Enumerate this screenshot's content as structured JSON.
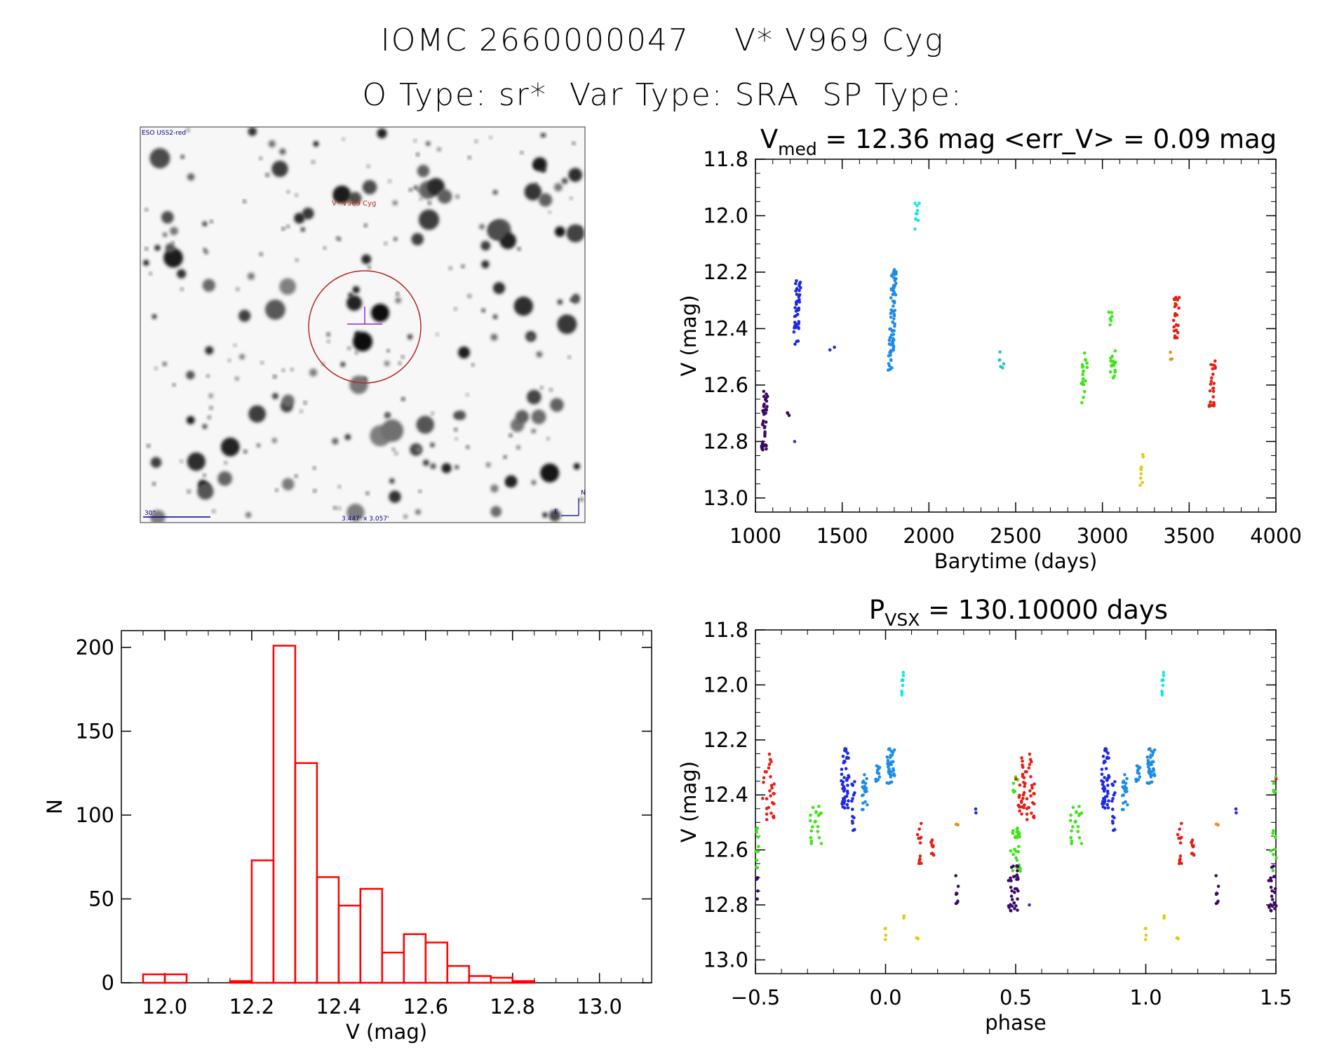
{
  "header": {
    "line1": "IOMC 2660000047    V* V969 Cyg",
    "line2": "O Type: sr*  Var Type: SRA  SP Type:"
  },
  "finder": {
    "survey": "ESO USS2-red",
    "target_label": "V* V969 Cyg",
    "scale_label": "30\"",
    "fov_label": "3.447' x 3.057'",
    "north": "N",
    "east": "E"
  },
  "colors": {
    "purple": "#3c0a64",
    "violet": "#5a1ec8",
    "blue": "#1e28e6",
    "azure": "#1e8ce6",
    "cyan": "#14e6e6",
    "teal": "#19c8c8",
    "green": "#3ce614",
    "yellow": "#e6c814",
    "orange": "#f08c14",
    "red": "#e61e14",
    "hist": "#ff0000",
    "circle": "#b42828"
  },
  "chart_data": [
    {
      "id": "lightcurve",
      "type": "scatter",
      "title_prefix": "V",
      "title_sub": "med",
      "title_rest": " = 12.36 mag <err_V> = 0.09 mag",
      "xlabel": "Barytime (days)",
      "ylabel": "V (mag)",
      "xlim": [
        1000,
        4000
      ],
      "ylim": [
        13.05,
        11.8
      ],
      "xticks": [
        1000,
        1500,
        2000,
        2500,
        3000,
        3500,
        4000
      ],
      "xtick_labels": [
        "1000",
        "1500",
        "2000",
        "2500",
        "3000",
        "3500",
        "4000"
      ],
      "yticks": [
        11.8,
        12.0,
        12.2,
        12.4,
        12.6,
        12.8,
        13.0
      ],
      "ytick_labels": [
        "11.8",
        "12.0",
        "12.2",
        "12.4",
        "12.6",
        "12.8",
        "13.0"
      ],
      "groups": [
        {
          "color": "purple",
          "t": 1055,
          "vmin": 12.62,
          "vmax": 12.83,
          "n": 40
        },
        {
          "color": "purple",
          "t": 1180,
          "vmin": 12.69,
          "vmax": 12.71,
          "n": 3
        },
        {
          "color": "violet",
          "t": 1220,
          "vmin": 12.8,
          "vmax": 12.81,
          "n": 1
        },
        {
          "color": "blue",
          "t": 1240,
          "vmin": 12.23,
          "vmax": 12.46,
          "n": 45
        },
        {
          "color": "blue",
          "t": 1445,
          "vmin": 12.42,
          "vmax": 12.48,
          "n": 2
        },
        {
          "color": "azure",
          "t": 1790,
          "vmin": 12.19,
          "vmax": 12.55,
          "n": 80
        },
        {
          "color": "cyan",
          "t": 1928,
          "vmin": 11.95,
          "vmax": 12.05,
          "n": 10
        },
        {
          "color": "teal",
          "t": 2420,
          "vmin": 12.46,
          "vmax": 12.55,
          "n": 6
        },
        {
          "color": "green",
          "t": 2895,
          "vmin": 12.48,
          "vmax": 12.67,
          "n": 20
        },
        {
          "color": "green",
          "t": 3040,
          "vmin": 12.32,
          "vmax": 12.41,
          "n": 6
        },
        {
          "color": "green",
          "t": 3060,
          "vmin": 12.47,
          "vmax": 12.6,
          "n": 15
        },
        {
          "color": "yellow",
          "t": 3235,
          "vmin": 12.84,
          "vmax": 12.98,
          "n": 10
        },
        {
          "color": "orange",
          "t": 3400,
          "vmin": 12.48,
          "vmax": 12.51,
          "n": 3
        },
        {
          "color": "red",
          "t": 3425,
          "vmin": 12.26,
          "vmax": 12.44,
          "n": 25
        },
        {
          "color": "red",
          "t": 3635,
          "vmin": 12.48,
          "vmax": 12.69,
          "n": 25
        }
      ]
    },
    {
      "id": "histogram",
      "type": "bar",
      "xlabel": "V (mag)",
      "ylabel": "N",
      "xlim": [
        11.9,
        13.12
      ],
      "ylim": [
        0,
        210
      ],
      "xticks": [
        12.0,
        12.2,
        12.4,
        12.6,
        12.8,
        13.0
      ],
      "xtick_labels": [
        "12.0",
        "12.2",
        "12.4",
        "12.6",
        "12.8",
        "13.0"
      ],
      "yticks": [
        0,
        50,
        100,
        150,
        200
      ],
      "ytick_labels": [
        "0",
        "50",
        "100",
        "150",
        "200"
      ],
      "bin_starts": [
        11.95,
        12.0,
        12.05,
        12.1,
        12.15,
        12.2,
        12.25,
        12.3,
        12.35,
        12.4,
        12.45,
        12.5,
        12.55,
        12.6,
        12.65,
        12.7,
        12.75,
        12.8,
        12.85,
        12.9,
        12.95,
        13.0
      ],
      "bin_width": 0.05,
      "counts": [
        5,
        5,
        0,
        0,
        1,
        73,
        201,
        131,
        63,
        46,
        56,
        18,
        29,
        24,
        10,
        4,
        3,
        1,
        0,
        0,
        0,
        0
      ]
    },
    {
      "id": "phased",
      "type": "scatter",
      "title_prefix": "P",
      "title_sub": "VSX",
      "title_rest": " = 130.10000 days",
      "period": 130.1,
      "xlabel": "phase",
      "ylabel": "V (mag)",
      "xlim": [
        -0.5,
        1.5
      ],
      "ylim": [
        13.05,
        11.8
      ],
      "xticks": [
        -0.5,
        0.0,
        0.5,
        1.0,
        1.5
      ],
      "xtick_labels": [
        "−0.5",
        "0.0",
        "0.5",
        "1.0",
        "1.5"
      ],
      "yticks": [
        11.8,
        12.0,
        12.2,
        12.4,
        12.6,
        12.8,
        13.0
      ],
      "ytick_labels": [
        "11.8",
        "12.0",
        "12.2",
        "12.4",
        "12.6",
        "12.8",
        "13.0"
      ],
      "groups": [
        {
          "color": "red",
          "p": -0.45,
          "w": 0.045,
          "vmin": 12.25,
          "vmax": 12.5,
          "n": 30
        },
        {
          "color": "green",
          "p": -0.49,
          "w": 0.02,
          "vmin": 12.5,
          "vmax": 12.68,
          "n": 10
        },
        {
          "color": "purple",
          "p": -0.49,
          "w": 0.02,
          "vmin": 12.7,
          "vmax": 12.8,
          "n": 5
        },
        {
          "color": "green",
          "p": -0.27,
          "w": 0.05,
          "vmin": 12.44,
          "vmax": 12.6,
          "n": 20
        },
        {
          "color": "blue",
          "p": -0.155,
          "w": 0.03,
          "vmin": 12.23,
          "vmax": 12.46,
          "n": 45
        },
        {
          "color": "blue",
          "p": -0.125,
          "w": 0.015,
          "vmin": 12.35,
          "vmax": 12.53,
          "n": 15
        },
        {
          "color": "azure",
          "p": -0.08,
          "w": 0.02,
          "vmin": 12.32,
          "vmax": 12.46,
          "n": 20
        },
        {
          "color": "azure",
          "p": -0.03,
          "w": 0.02,
          "vmin": 12.29,
          "vmax": 12.36,
          "n": 12
        },
        {
          "color": "azure",
          "p": 0.02,
          "w": 0.03,
          "vmin": 12.23,
          "vmax": 12.36,
          "n": 35
        },
        {
          "color": "cyan",
          "p": 0.065,
          "w": 0.008,
          "vmin": 11.95,
          "vmax": 12.05,
          "n": 10
        },
        {
          "color": "yellow",
          "p": 0.0,
          "w": 0.01,
          "vmin": 12.88,
          "vmax": 12.98,
          "n": 4
        },
        {
          "color": "yellow",
          "p": 0.07,
          "w": 0.005,
          "vmin": 12.84,
          "vmax": 12.86,
          "n": 2
        },
        {
          "color": "yellow",
          "p": 0.12,
          "w": 0.01,
          "vmin": 12.91,
          "vmax": 12.93,
          "n": 3
        },
        {
          "color": "red",
          "p": 0.13,
          "w": 0.015,
          "vmin": 12.5,
          "vmax": 12.65,
          "n": 12
        },
        {
          "color": "red",
          "p": 0.18,
          "w": 0.015,
          "vmin": 12.55,
          "vmax": 12.62,
          "n": 10
        },
        {
          "color": "orange",
          "p": 0.275,
          "w": 0.008,
          "vmin": 12.48,
          "vmax": 12.51,
          "n": 3
        },
        {
          "color": "purple",
          "p": 0.275,
          "w": 0.01,
          "vmin": 12.69,
          "vmax": 12.8,
          "n": 8
        },
        {
          "color": "blue",
          "p": 0.345,
          "w": 0.005,
          "vmin": 12.42,
          "vmax": 12.47,
          "n": 2
        },
        {
          "color": "green",
          "p": 0.5,
          "w": 0.04,
          "vmin": 12.53,
          "vmax": 12.68,
          "n": 20
        },
        {
          "color": "green",
          "p": 0.5,
          "w": 0.02,
          "vmin": 12.32,
          "vmax": 12.4,
          "n": 6
        },
        {
          "color": "red",
          "p": 0.52,
          "w": 0.04,
          "vmin": 12.26,
          "vmax": 12.47,
          "n": 25
        },
        {
          "color": "purple",
          "p": 0.49,
          "w": 0.04,
          "vmin": 12.65,
          "vmax": 12.83,
          "n": 30
        },
        {
          "color": "violet",
          "p": 0.55,
          "w": 0.005,
          "vmin": 12.8,
          "vmax": 12.81,
          "n": 1
        }
      ]
    }
  ]
}
